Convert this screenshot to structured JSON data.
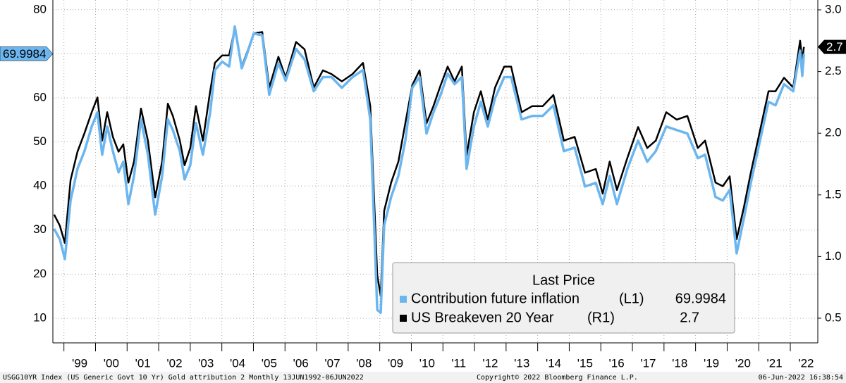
{
  "chart_data": {
    "type": "line",
    "x": [
      1998.69,
      1998.87,
      1999.03,
      1999.21,
      1999.43,
      1999.65,
      1999.88,
      2000.06,
      2000.21,
      2000.37,
      2000.55,
      2000.73,
      2000.88,
      2001.04,
      2001.22,
      2001.44,
      2001.66,
      2001.89,
      2002.11,
      2002.29,
      2002.45,
      2002.67,
      2002.82,
      2003.0,
      2003.18,
      2003.4,
      2003.63,
      2003.78,
      2004.01,
      2004.23,
      2004.41,
      2004.63,
      2004.79,
      2005.01,
      2005.28,
      2005.5,
      2005.79,
      2006.02,
      2006.35,
      2006.62,
      2006.91,
      2007.2,
      2007.47,
      2007.8,
      2008.14,
      2008.47,
      2008.7,
      2008.92,
      2009.03,
      2009.14,
      2009.36,
      2009.59,
      2009.81,
      2010.03,
      2010.26,
      2010.48,
      2010.7,
      2010.93,
      2011.15,
      2011.37,
      2011.6,
      2011.75,
      2011.98,
      2012.2,
      2012.42,
      2012.65,
      2012.94,
      2013.16,
      2013.49,
      2013.83,
      2014.16,
      2014.5,
      2014.83,
      2015.17,
      2015.5,
      2015.84,
      2016.06,
      2016.28,
      2016.51,
      2016.84,
      2017.18,
      2017.47,
      2017.74,
      2018.07,
      2018.4,
      2018.74,
      2019.07,
      2019.3,
      2019.63,
      2019.86,
      2020.08,
      2020.3,
      2020.53,
      2020.75,
      2021.04,
      2021.31,
      2021.53,
      2021.8,
      2022.09,
      2022.31,
      2022.38,
      2022.43
    ],
    "series": [
      {
        "name": "Contribution future inflation",
        "legend_axis": "(L1)",
        "color": "#6cb6f0",
        "axis": "y",
        "values": [
          30.3,
          27.9,
          23.4,
          36.7,
          43.9,
          47.9,
          53.5,
          56.7,
          47.1,
          53.5,
          47.9,
          43.1,
          45.5,
          35.9,
          42.3,
          55.1,
          47.1,
          33.5,
          42.3,
          55.1,
          52.7,
          47.9,
          41.5,
          44.7,
          54.3,
          47.1,
          56.7,
          66.3,
          68.2,
          67.1,
          76.2,
          66.7,
          69.8,
          74.6,
          74.2,
          60.7,
          67.9,
          63.9,
          71.1,
          68.7,
          61.5,
          64.7,
          64.7,
          62.3,
          64.7,
          66.3,
          55.1,
          11.9,
          11.2,
          31.1,
          37.5,
          42.3,
          50.3,
          62.3,
          64.7,
          51.9,
          56.7,
          60.7,
          65.5,
          63.1,
          64.7,
          43.9,
          53.5,
          59.1,
          53.5,
          59.9,
          64.7,
          64.7,
          55.1,
          55.9,
          55.9,
          58.3,
          47.9,
          48.7,
          39.9,
          40.7,
          35.9,
          42.3,
          35.9,
          43.9,
          50.3,
          45.5,
          47.9,
          53.5,
          52.7,
          51.9,
          46.3,
          47.1,
          37.5,
          36.7,
          39.1,
          24.7,
          32.7,
          40.7,
          50.3,
          59.1,
          58.3,
          63.1,
          61.5,
          70.7,
          65.0,
          69.9984
        ]
      },
      {
        "name": "US Breakeven 20 Year",
        "legend_axis": "(R1)",
        "color": "#000000",
        "axis": "y2",
        "values": [
          1.34,
          1.25,
          1.11,
          1.62,
          1.85,
          2.0,
          2.17,
          2.29,
          1.94,
          2.17,
          1.97,
          1.85,
          1.91,
          1.6,
          1.77,
          2.2,
          1.94,
          1.48,
          1.77,
          2.24,
          2.14,
          1.94,
          1.74,
          1.88,
          2.22,
          1.94,
          2.34,
          2.57,
          2.63,
          2.63,
          2.85,
          2.54,
          2.65,
          2.81,
          2.82,
          2.37,
          2.62,
          2.45,
          2.74,
          2.68,
          2.37,
          2.51,
          2.48,
          2.42,
          2.48,
          2.57,
          2.22,
          0.85,
          0.68,
          1.37,
          1.6,
          1.77,
          2.08,
          2.39,
          2.51,
          2.08,
          2.22,
          2.39,
          2.54,
          2.42,
          2.54,
          1.82,
          2.17,
          2.34,
          2.11,
          2.37,
          2.54,
          2.54,
          2.17,
          2.22,
          2.22,
          2.31,
          1.94,
          1.97,
          1.68,
          1.71,
          1.51,
          1.77,
          1.54,
          1.8,
          2.05,
          1.88,
          1.94,
          2.17,
          2.11,
          2.14,
          1.88,
          1.94,
          1.6,
          1.57,
          1.65,
          1.14,
          1.4,
          1.68,
          2.02,
          2.34,
          2.34,
          2.45,
          2.37,
          2.75,
          2.59,
          2.7
        ]
      }
    ],
    "xlim": [
      1998.65,
      2022.87
    ],
    "xticks": [
      {
        "value": 1999,
        "label": "'99"
      },
      {
        "value": 2000,
        "label": "'00"
      },
      {
        "value": 2001,
        "label": "'01"
      },
      {
        "value": 2002,
        "label": "'02"
      },
      {
        "value": 2003,
        "label": "'03"
      },
      {
        "value": 2004,
        "label": "'04"
      },
      {
        "value": 2005,
        "label": "'05"
      },
      {
        "value": 2006,
        "label": "'06"
      },
      {
        "value": 2007,
        "label": "'07"
      },
      {
        "value": 2008,
        "label": "'08"
      },
      {
        "value": 2009,
        "label": "'09"
      },
      {
        "value": 2010,
        "label": "'10"
      },
      {
        "value": 2011,
        "label": "'11"
      },
      {
        "value": 2012,
        "label": "'12"
      },
      {
        "value": 2013,
        "label": "'13"
      },
      {
        "value": 2014,
        "label": "'14"
      },
      {
        "value": 2015,
        "label": "'15"
      },
      {
        "value": 2016,
        "label": "'16"
      },
      {
        "value": 2017,
        "label": "'17"
      },
      {
        "value": 2018,
        "label": "'18"
      },
      {
        "value": 2019,
        "label": "'19"
      },
      {
        "value": 2020,
        "label": "'20"
      },
      {
        "value": 2021,
        "label": "'21"
      },
      {
        "value": 2022,
        "label": "'22"
      }
    ],
    "ylim": [
      4.4,
      82.2
    ],
    "yticks": [
      10,
      20,
      30,
      40,
      50,
      60,
      70,
      80
    ],
    "y2lim": [
      0.3,
      3.08
    ],
    "y2ticks": [
      0.5,
      {
        "value": 1,
        "label": "1.0"
      },
      1.5,
      {
        "value": 2,
        "label": "2.0"
      },
      2.5,
      {
        "value": 3,
        "label": "3.0"
      }
    ],
    "grid": true,
    "legend_title": "Last Price",
    "legend_position": "lower right",
    "source": "USGG10YR Index (US Generic Govt 10 Yr) Gold attribution 2  Monthly 13JUN1992-06JUN2022",
    "copyright": "Copyright© 2022 Bloomberg Finance L.P.",
    "timestamp": "06-Jun-2022 16:38:54"
  }
}
